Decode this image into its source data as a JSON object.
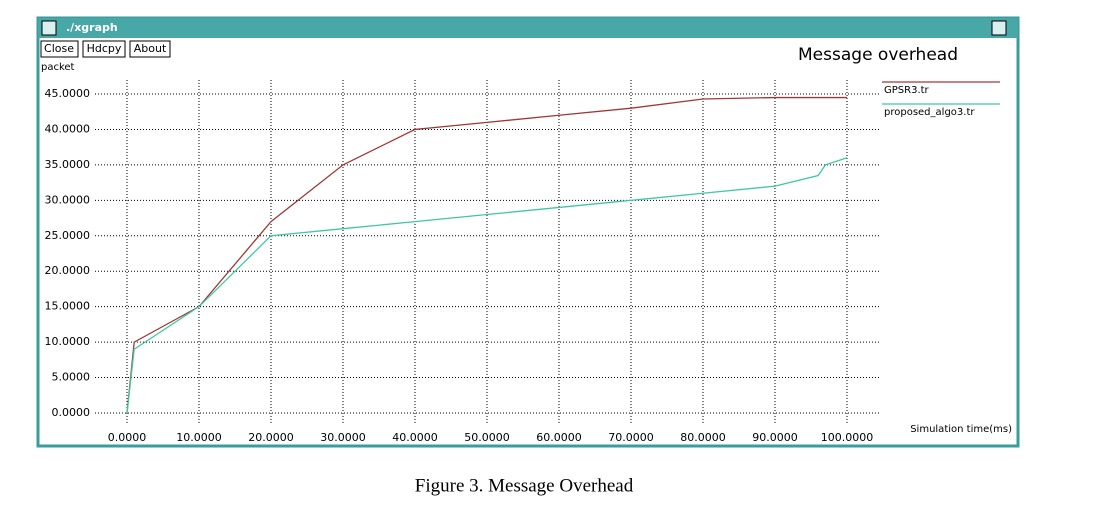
{
  "window": {
    "title": "./xgraph",
    "buttons": [
      "Close",
      "Hdcpy",
      "About"
    ]
  },
  "chart_data": {
    "type": "line",
    "title": "Message overhead",
    "ylabel": "packet",
    "xlabel": "Simulation time(ms)",
    "xlim": [
      0,
      100
    ],
    "ylim": [
      0,
      45
    ],
    "grid": true,
    "legend": "top-right",
    "xticks": [
      {
        "value": 0,
        "label": "0.0000"
      },
      {
        "value": 10,
        "label": "10.0000"
      },
      {
        "value": 20,
        "label": "20.0000"
      },
      {
        "value": 30,
        "label": "30.0000"
      },
      {
        "value": 40,
        "label": "40.0000"
      },
      {
        "value": 50,
        "label": "50.0000"
      },
      {
        "value": 60,
        "label": "60.0000"
      },
      {
        "value": 70,
        "label": "70.0000"
      },
      {
        "value": 80,
        "label": "80.0000"
      },
      {
        "value": 90,
        "label": "90.0000"
      },
      {
        "value": 100,
        "label": "100.0000"
      }
    ],
    "yticks": [
      {
        "value": 0,
        "label": "0.0000"
      },
      {
        "value": 5,
        "label": "5.0000"
      },
      {
        "value": 10,
        "label": "10.0000"
      },
      {
        "value": 15,
        "label": "15.0000"
      },
      {
        "value": 20,
        "label": "20.0000"
      },
      {
        "value": 25,
        "label": "25.0000"
      },
      {
        "value": 30,
        "label": "30.0000"
      },
      {
        "value": 35,
        "label": "35.0000"
      },
      {
        "value": 40,
        "label": "40.0000"
      },
      {
        "value": 45,
        "label": "45.0000"
      }
    ],
    "series": [
      {
        "name": "GPSR3.tr",
        "color": "#a03838",
        "x": [
          0,
          1,
          10,
          20,
          30,
          40,
          50,
          60,
          70,
          80,
          90,
          100
        ],
        "values": [
          0,
          10,
          15,
          27,
          35,
          40,
          41,
          42,
          43,
          44.3,
          44.5,
          44.5
        ]
      },
      {
        "name": "proposed_algo3.tr",
        "color": "#40c8a0",
        "x": [
          0,
          1,
          10,
          20,
          30,
          40,
          50,
          60,
          70,
          80,
          90,
          96,
          97,
          100
        ],
        "values": [
          0,
          9,
          15,
          25,
          26,
          27,
          28,
          29,
          30,
          31,
          32,
          33.5,
          35,
          36
        ]
      }
    ]
  },
  "caption": "Figure 3. Message Overhead"
}
